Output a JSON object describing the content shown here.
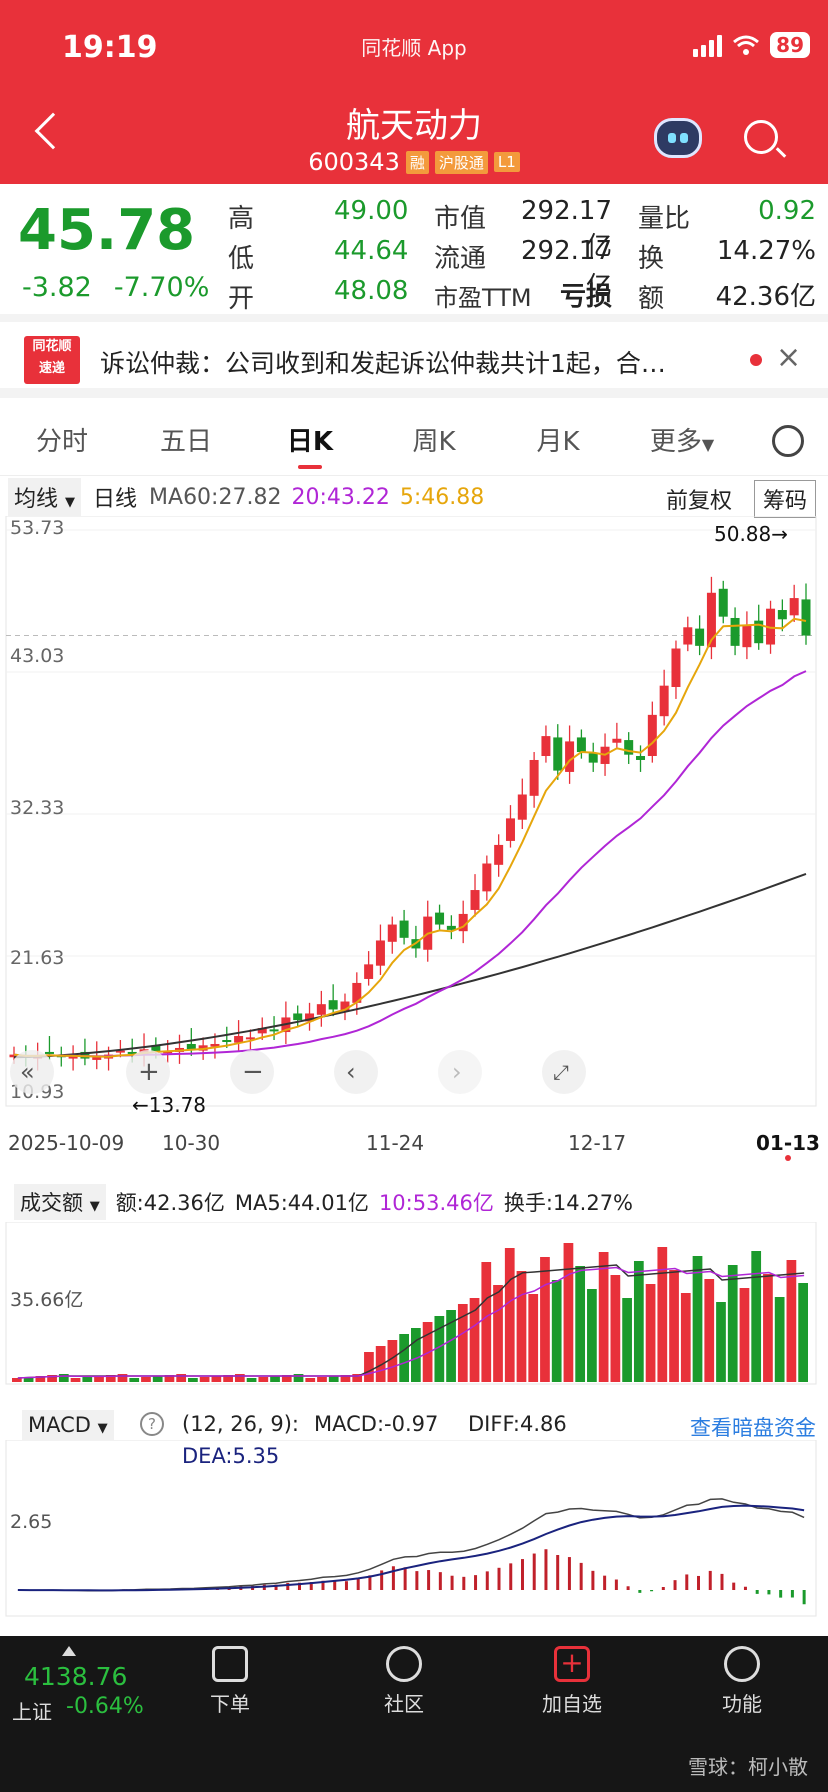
{
  "status": {
    "time": "19:19",
    "app": "同花顺 App",
    "battery": "89"
  },
  "stock": {
    "name": "航天动力",
    "code": "600343",
    "tags": [
      "融",
      "沪股通",
      "L1"
    ]
  },
  "quote": {
    "price": "45.78",
    "change": "-3.82",
    "change_pct": "-7.70%",
    "cells": [
      {
        "label": "高",
        "value": "49.00"
      },
      {
        "label": "低",
        "value": "44.64"
      },
      {
        "label": "开",
        "value": "48.08"
      },
      {
        "label": "市值",
        "value": "292.17亿"
      },
      {
        "label": "流通",
        "value": "292.17亿"
      },
      {
        "label": "市盈TTM",
        "value": "亏损"
      },
      {
        "label": "量比",
        "value": "0.92"
      },
      {
        "label": "换",
        "value": "14.27%"
      },
      {
        "label": "额",
        "value": "42.36亿"
      }
    ]
  },
  "news": {
    "logo_top": "同花顺",
    "logo_bottom": "速递",
    "text": "诉讼仲裁：公司收到和发起诉讼仲裁共计1起，合…"
  },
  "tabs": [
    "分时",
    "五日",
    "日K",
    "周K",
    "月K",
    "更多"
  ],
  "kline": {
    "ma_selector": "均线",
    "period": "日线",
    "ma60": "MA60:27.82",
    "ma20": "20:43.22",
    "ma5": "5:46.88",
    "adjust": "前复权",
    "chips": "筹码",
    "y_ticks": [
      "53.73",
      "43.03",
      "32.33",
      "21.63",
      "10.93"
    ],
    "high_label": "50.88→",
    "low_label": "←13.78",
    "dates": [
      "2025-10-09",
      "10-30",
      "11-24",
      "12-17",
      "01-13"
    ]
  },
  "volume": {
    "selector": "成交额",
    "amount": "额:42.36亿",
    "ma5": "MA5:44.01亿",
    "ma10": "10:53.46亿",
    "turnover": "换手:14.27%",
    "y_tick": "35.66亿"
  },
  "macd": {
    "selector": "MACD",
    "help": "?",
    "params": "(12, 26, 9):",
    "macd": "MACD:-0.97",
    "diff": "DIFF:4.86",
    "dea": "DEA:5.35",
    "link": "查看暗盘资金",
    "y_tick": "2.65"
  },
  "bottom": {
    "index_value": "4138.76",
    "index_name": "上证",
    "index_pct": "-0.64%",
    "nav": [
      "下单",
      "社区",
      "加自选",
      "功能"
    ],
    "watermark": "雪球：柯小散"
  },
  "chart_data": [
    {
      "type": "candlestick",
      "ylim": [
        10.93,
        53.73
      ],
      "x": [
        "2025-10-09",
        "10-30",
        "11-24",
        "12-17",
        "01-13"
      ],
      "closes": [
        14.2,
        14.0,
        14.1,
        14.3,
        14.0,
        14.1,
        13.9,
        14.0,
        14.2,
        14.5,
        14.3,
        14.6,
        14.4,
        14.5,
        14.7,
        14.6,
        14.9,
        15.0,
        15.2,
        15.6,
        15.5,
        16.2,
        16.0,
        17.0,
        16.8,
        17.3,
        18.0,
        17.6,
        18.2,
        19.6,
        21.0,
        22.8,
        24.0,
        23.0,
        22.2,
        24.6,
        24.0,
        23.6,
        24.8,
        26.6,
        28.6,
        30.0,
        32.0,
        33.8,
        36.4,
        38.2,
        35.6,
        37.8,
        37.0,
        36.2,
        37.4,
        38.0,
        36.8,
        36.4,
        39.8,
        42.0,
        44.8,
        46.4,
        45.0,
        49.0,
        47.2,
        45.0,
        46.6,
        45.2,
        47.8,
        47.0,
        48.6,
        45.78
      ],
      "ma5_last": 46.88,
      "ma20_last": 43.22,
      "ma60_last": 27.82,
      "high": 50.88,
      "low": 13.78
    },
    {
      "type": "bar",
      "name": "成交额",
      "y_tick": 35.66
    },
    {
      "type": "bar",
      "name": "MACD",
      "macd": -0.97,
      "diff": 4.86,
      "dea": 5.35
    }
  ]
}
